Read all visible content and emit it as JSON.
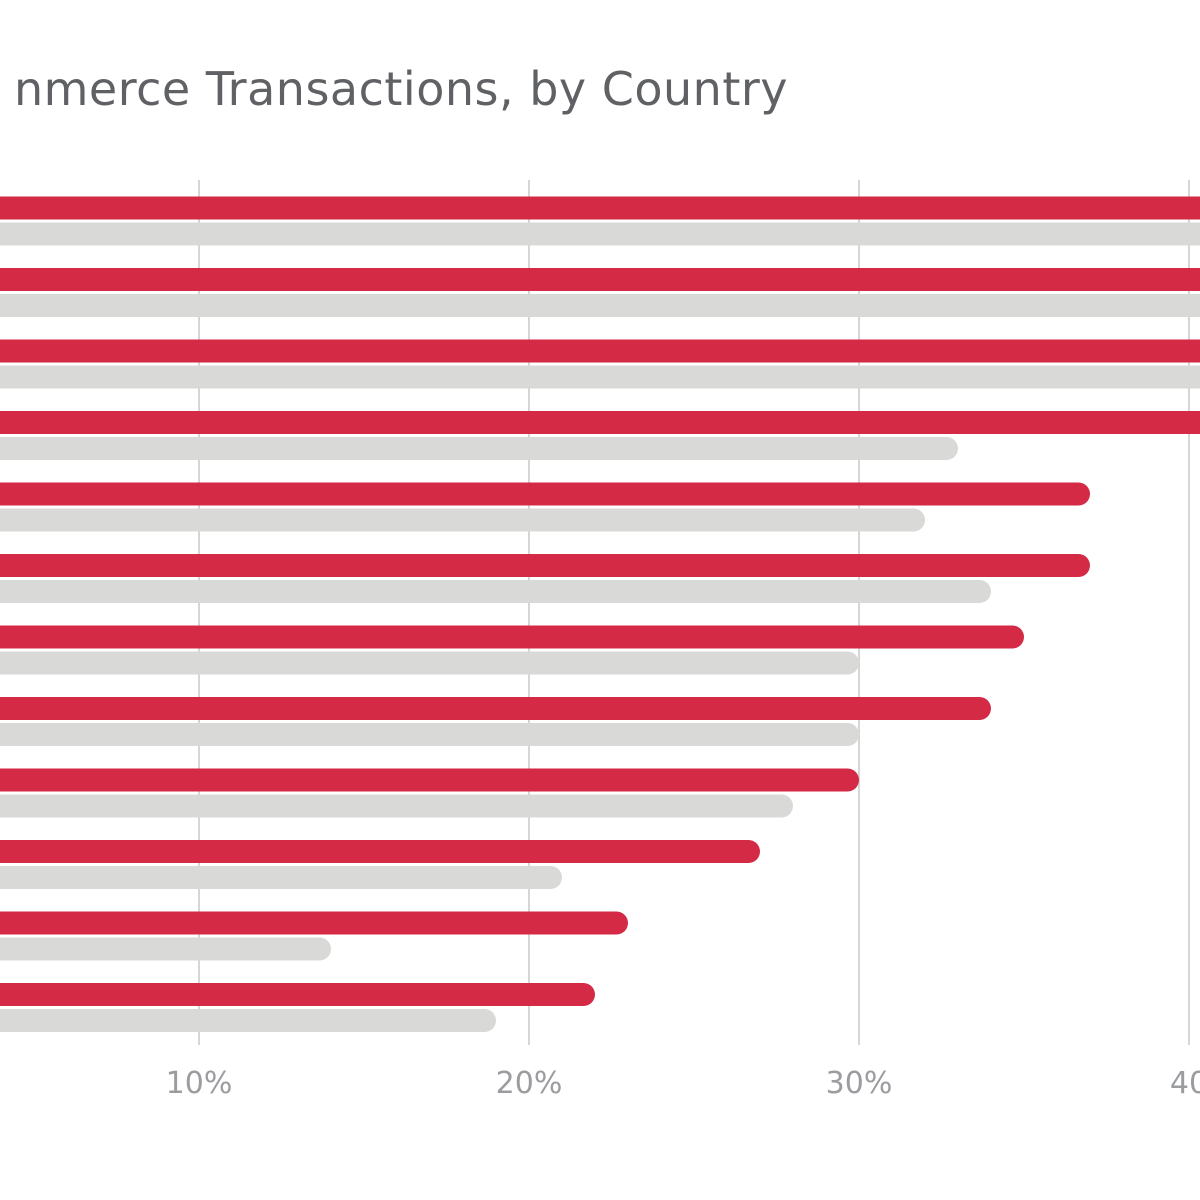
{
  "chart_data": {
    "type": "bar",
    "orientation": "horizontal",
    "title": "nmerce Transactions, by Country",
    "xlabel": "",
    "ylabel": "",
    "x_tick_labels": [
      "10%",
      "20%",
      "30%",
      "40"
    ],
    "x_ticks": [
      10,
      20,
      30,
      40
    ],
    "grid": true,
    "legend": "none",
    "colors": {
      "primary": "#d42a45",
      "secondary": "#d9d9d7",
      "grid": "#d6d6d6",
      "title": "#5f6164",
      "tick": "#9a9c9f"
    },
    "series": [
      {
        "values": [
          41,
          41,
          41,
          41,
          37,
          37,
          35,
          34,
          30,
          27,
          23,
          22
        ]
      },
      {
        "values": [
          41,
          41,
          41,
          33,
          32,
          34,
          30,
          30,
          28,
          21,
          14,
          19
        ]
      }
    ]
  }
}
